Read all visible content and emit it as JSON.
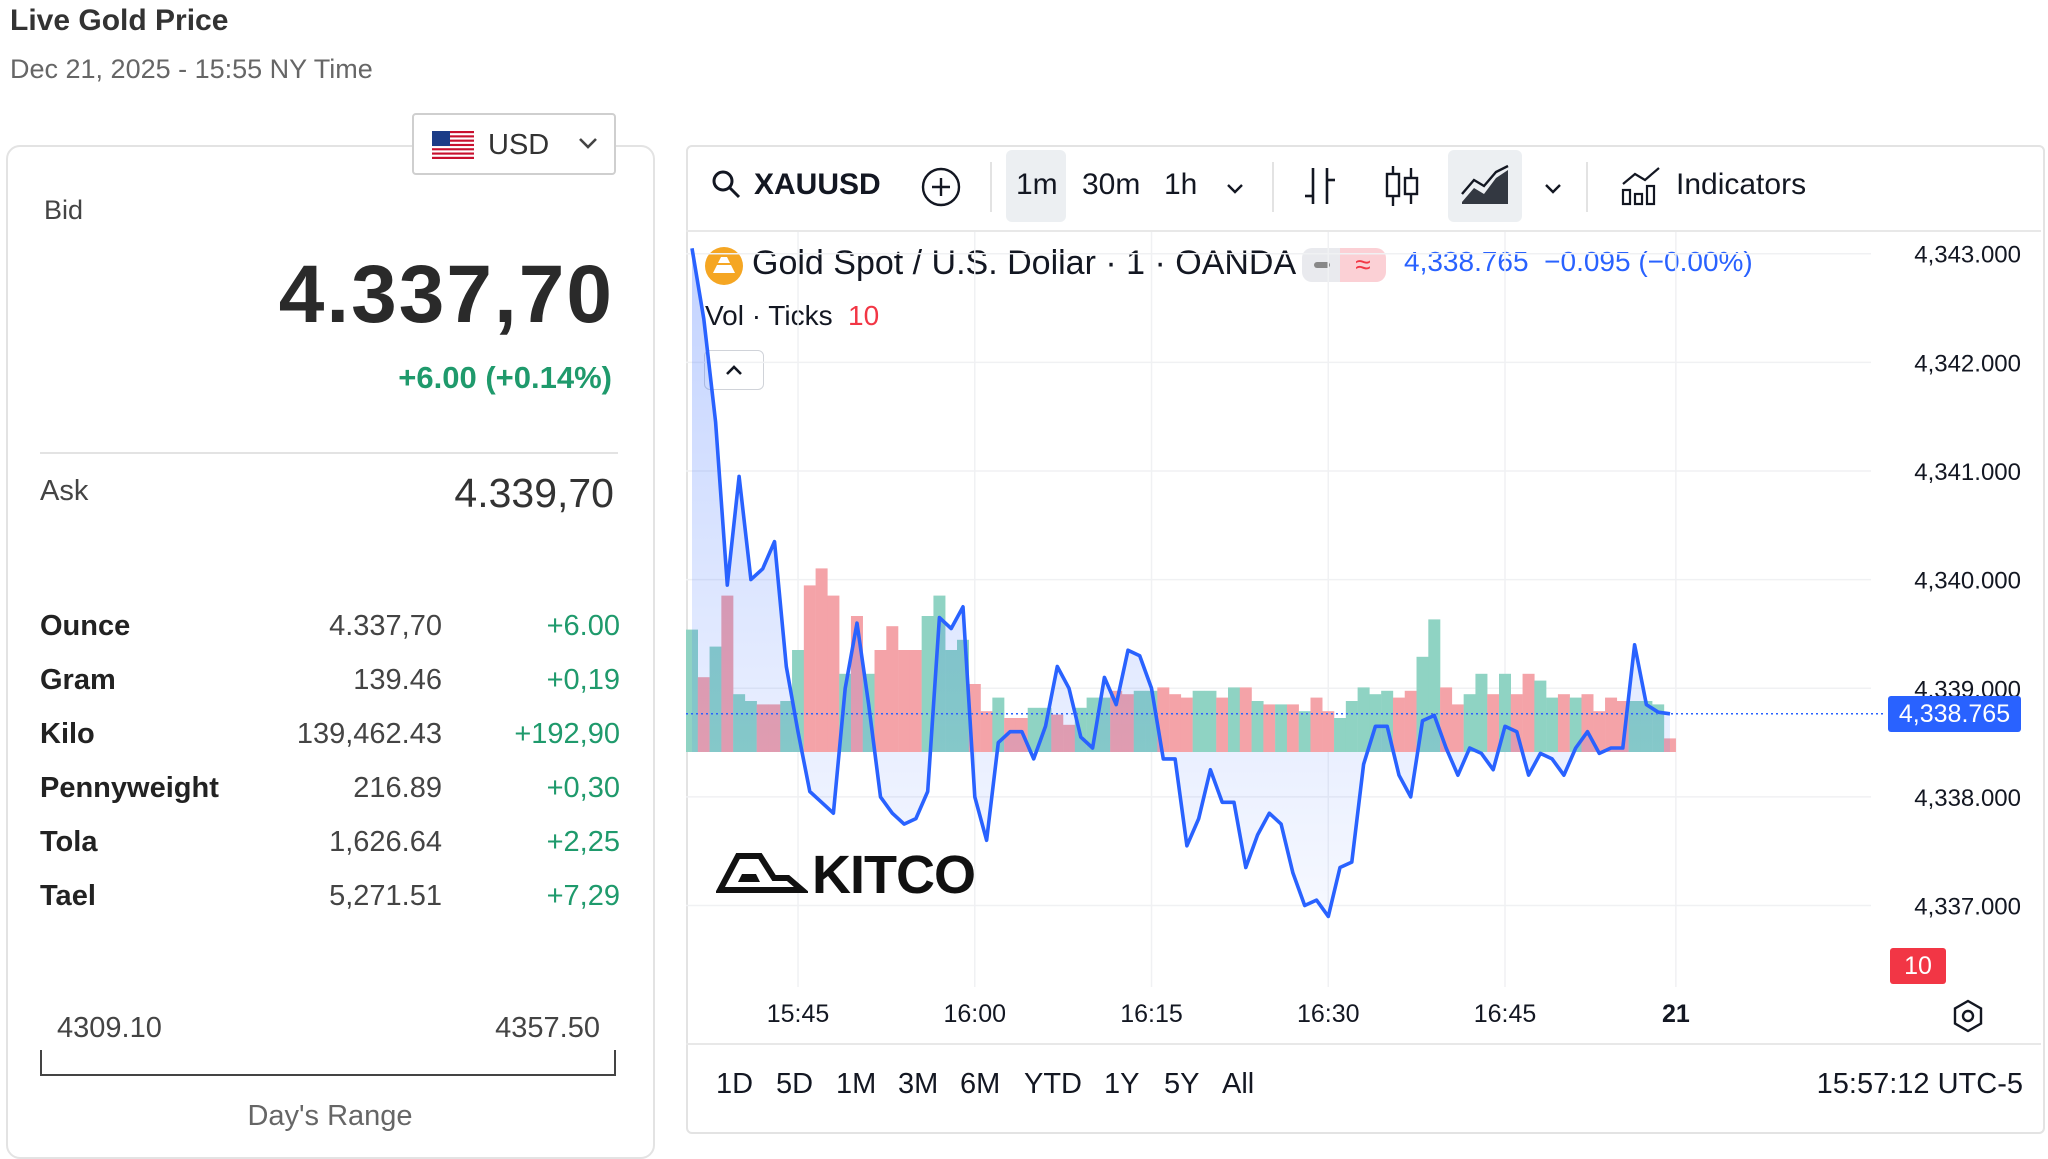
{
  "header": {
    "title": "Live Gold Price",
    "subtitle": "Dec 21, 2025 - 15:55 NY Time"
  },
  "currency": {
    "label": "USD",
    "flag_icon": "us-flag-icon"
  },
  "quote": {
    "bid_label": "Bid",
    "bid_price": "4.337,70",
    "bid_change": "+6.00 (+0.14%)",
    "ask_label": "Ask",
    "ask_price": "4.339,70"
  },
  "units": [
    {
      "name": "Ounce",
      "price": "4.337,70",
      "change": "+6.00"
    },
    {
      "name": "Gram",
      "price": "139.46",
      "change": "+0,19"
    },
    {
      "name": "Kilo",
      "price": "139,462.43",
      "change": "+192,90"
    },
    {
      "name": "Pennyweight",
      "price": "216.89",
      "change": "+0,30"
    },
    {
      "name": "Tola",
      "price": "1,626.64",
      "change": "+2,25"
    },
    {
      "name": "Tael",
      "price": "5,271.51",
      "change": "+7,29"
    }
  ],
  "day_range": {
    "low": "4309.10",
    "high": "4357.50",
    "label": "Day's Range"
  },
  "toolbar": {
    "symbol": "XAUUSD",
    "intervals": [
      "1m",
      "30m",
      "1h"
    ],
    "active_interval": "1m",
    "indicators_label": "Indicators"
  },
  "legend": {
    "series_title": "Gold Spot / U.S. Dollar · 1 · OANDA",
    "last": "4,338.765",
    "change": "−0.095 (−0.00%)",
    "volume_label": "Vol · Ticks",
    "volume_value": "10"
  },
  "periods": [
    "1D",
    "5D",
    "1M",
    "3M",
    "6M",
    "YTD",
    "1Y",
    "5Y",
    "All"
  ],
  "clock": "15:57:12 UTC-5",
  "watermark": "KITCO",
  "colors": {
    "line": "#2962ff",
    "up_volume": "#8fd3c3",
    "down_volume": "#f4a3a8",
    "positive": "#1f9a6c",
    "negative": "#f23645"
  },
  "chart_data": {
    "type": "line",
    "title": "Gold Spot / U.S. Dollar · 1 · OANDA",
    "xlabel": "",
    "ylabel": "",
    "x_tick_labels": [
      "15:45",
      "16:00",
      "16:15",
      "16:30",
      "16:45",
      "21"
    ],
    "y_tick_labels": [
      "4,343.000",
      "4,342.000",
      "4,341.000",
      "4,340.000",
      "4,339.000",
      "4,338.000",
      "4,337.000"
    ],
    "ylim": [
      4336.25,
      4343.2
    ],
    "last_price_label": "4,338.765",
    "volume_last_label": "10",
    "x_minutes": [
      0,
      1,
      2,
      3,
      4,
      5,
      6,
      7,
      8,
      9,
      10,
      11,
      12,
      13,
      14,
      15,
      16,
      17,
      18,
      19,
      20,
      21,
      22,
      23,
      24,
      25,
      26,
      27,
      28,
      29,
      30,
      31,
      32,
      33,
      34,
      35,
      36,
      37,
      38,
      39,
      40,
      41,
      42,
      43,
      44,
      45,
      46,
      47,
      48,
      49,
      50,
      51,
      52,
      53,
      54,
      55,
      56,
      57,
      58,
      59,
      60,
      61,
      62,
      63,
      64,
      65,
      66,
      67,
      68,
      69,
      70,
      71,
      72,
      73,
      74,
      75,
      76,
      77,
      78,
      79,
      80,
      81,
      82,
      83
    ],
    "price": [
      4343.05,
      4342.4,
      4341.45,
      4339.95,
      4340.95,
      4340.0,
      4340.1,
      4340.35,
      4339.2,
      4338.6,
      4338.05,
      4337.95,
      4337.85,
      4339.0,
      4339.6,
      4338.85,
      4338.0,
      4337.85,
      4337.75,
      4337.8,
      4338.05,
      4339.65,
      4339.55,
      4339.75,
      4338.0,
      4337.6,
      4338.5,
      4338.6,
      4338.6,
      4338.35,
      4338.65,
      4339.2,
      4339.0,
      4338.55,
      4338.45,
      4339.1,
      4338.85,
      4339.35,
      4339.3,
      4339.0,
      4338.35,
      4338.35,
      4337.55,
      4337.8,
      4338.25,
      4337.95,
      4337.95,
      4337.35,
      4337.65,
      4337.85,
      4337.75,
      4337.3,
      4337.0,
      4337.05,
      4336.9,
      4337.35,
      4337.4,
      4338.3,
      4338.65,
      4338.65,
      4338.2,
      4338.0,
      4338.7,
      4338.75,
      4338.45,
      4338.2,
      4338.45,
      4338.4,
      4338.25,
      4338.65,
      4338.6,
      4338.2,
      4338.4,
      4338.35,
      4338.2,
      4338.45,
      4338.6,
      4338.4,
      4338.45,
      4338.45,
      4339.4,
      4338.85,
      4338.78,
      4338.765
    ],
    "volume_up": [
      1,
      0,
      1,
      0,
      1,
      1,
      0,
      0,
      1,
      1,
      0,
      0,
      0,
      1,
      0,
      1,
      0,
      0,
      0,
      0,
      1,
      1,
      1,
      1,
      0,
      0,
      1,
      0,
      0,
      1,
      1,
      0,
      0,
      1,
      1,
      1,
      0,
      0,
      1,
      1,
      0,
      0,
      0,
      1,
      1,
      0,
      1,
      0,
      1,
      0,
      1,
      0,
      1,
      0,
      0,
      1,
      1,
      1,
      1,
      1,
      0,
      0,
      1,
      1,
      0,
      0,
      1,
      1,
      0,
      1,
      0,
      0,
      1,
      1,
      0,
      1,
      0,
      0,
      0,
      0,
      1,
      1,
      1,
      0
    ],
    "volume": [
      3.6,
      2.2,
      3.1,
      4.6,
      1.7,
      1.5,
      1.4,
      1.4,
      1.5,
      3.0,
      4.9,
      5.4,
      4.6,
      2.3,
      4.0,
      2.3,
      3.0,
      3.7,
      3.0,
      3.0,
      4.0,
      4.6,
      3.0,
      3.3,
      2.0,
      1.2,
      1.6,
      1.0,
      1.0,
      1.3,
      1.3,
      1.1,
      0.8,
      1.3,
      1.6,
      1.6,
      1.8,
      1.7,
      1.8,
      1.8,
      1.9,
      1.7,
      1.6,
      1.8,
      1.8,
      1.6,
      1.9,
      1.9,
      1.5,
      1.4,
      1.4,
      1.4,
      1.2,
      1.6,
      1.2,
      1.0,
      1.5,
      1.9,
      1.7,
      1.8,
      1.6,
      1.8,
      2.8,
      3.9,
      1.9,
      1.4,
      1.7,
      2.3,
      1.7,
      2.3,
      1.7,
      2.3,
      2.1,
      1.6,
      1.7,
      1.6,
      1.7,
      1.2,
      1.6,
      1.5,
      1.5,
      1.5,
      1.4,
      0.4
    ]
  }
}
